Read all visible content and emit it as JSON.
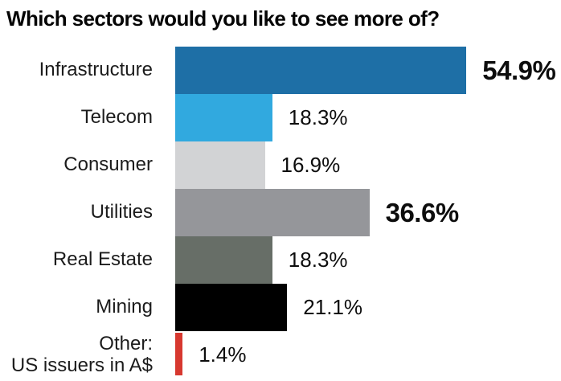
{
  "title": "Which sectors would you like to see more of?",
  "chart_data": {
    "type": "bar",
    "orientation": "horizontal",
    "title": "Which sectors would you like to see more of?",
    "xlabel": "",
    "ylabel": "",
    "xlim": [
      0,
      60
    ],
    "grid": false,
    "legend": "none",
    "categories": [
      "Infrastructure",
      "Telecom",
      "Consumer",
      "Utilities",
      "Real Estate",
      "Mining",
      "Other:\nUS issuers in A$"
    ],
    "values": [
      54.9,
      18.3,
      16.9,
      36.6,
      18.3,
      21.1,
      1.4
    ],
    "value_labels": [
      "54.9%",
      "18.3%",
      "16.9%",
      "36.6%",
      "18.3%",
      "21.1%",
      "1.4%"
    ],
    "bar_colors": [
      "#1E6FA6",
      "#31A9DF",
      "#D2D3D5",
      "#95969A",
      "#676E67",
      "#000000",
      "#D7382F"
    ],
    "emphasized_labels": [
      true,
      false,
      false,
      true,
      false,
      false,
      false
    ],
    "text_color": "#0d0d0d"
  }
}
